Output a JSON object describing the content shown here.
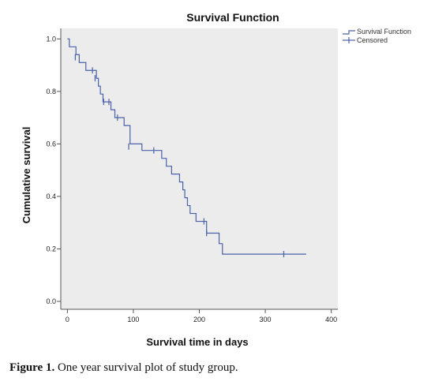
{
  "chart_data": {
    "type": "line",
    "subtype": "kaplan-meier-step",
    "title": "Survival Function",
    "xlabel": "Survival time in days",
    "ylabel": "Cumulative survival",
    "xlim": [
      -10,
      410
    ],
    "ylim": [
      -0.03,
      1.04
    ],
    "xticks": [
      0,
      100,
      200,
      300,
      400
    ],
    "yticks": [
      0.0,
      0.2,
      0.4,
      0.6,
      0.8,
      1.0
    ],
    "ytick_labels": [
      "0.0",
      "0.2",
      "0.4",
      "0.6",
      "0.8",
      "1.0"
    ],
    "grid": false,
    "legend_position": "top-right",
    "colors": {
      "line": "#4a62a8",
      "plot_background": "#ececec",
      "axes": "#555555"
    },
    "series": [
      {
        "name": "Survival Function",
        "steps": [
          [
            0,
            1.0
          ],
          [
            3,
            0.97
          ],
          [
            13,
            0.94
          ],
          [
            18,
            0.91
          ],
          [
            28,
            0.88
          ],
          [
            44,
            0.85
          ],
          [
            47,
            0.82
          ],
          [
            50,
            0.79
          ],
          [
            54,
            0.76
          ],
          [
            66,
            0.73
          ],
          [
            72,
            0.7
          ],
          [
            86,
            0.67
          ],
          [
            95,
            0.6
          ],
          [
            113,
            0.575
          ],
          [
            143,
            0.545
          ],
          [
            150,
            0.515
          ],
          [
            158,
            0.485
          ],
          [
            170,
            0.455
          ],
          [
            175,
            0.425
          ],
          [
            178,
            0.395
          ],
          [
            182,
            0.365
          ],
          [
            186,
            0.335
          ],
          [
            195,
            0.305
          ],
          [
            211,
            0.26
          ],
          [
            230,
            0.22
          ],
          [
            235,
            0.18
          ]
        ],
        "end_x": 362
      },
      {
        "name": "Censored",
        "points": [
          [
            12,
            0.93
          ],
          [
            38,
            0.88
          ],
          [
            42,
            0.85
          ],
          [
            55,
            0.76
          ],
          [
            63,
            0.76
          ],
          [
            76,
            0.7
          ],
          [
            93,
            0.59
          ],
          [
            131,
            0.575
          ],
          [
            207,
            0.305
          ],
          [
            211,
            0.26
          ],
          [
            328,
            0.18
          ]
        ]
      }
    ]
  },
  "caption": {
    "label": "Figure 1.",
    "text": " One year survival plot of study group."
  }
}
